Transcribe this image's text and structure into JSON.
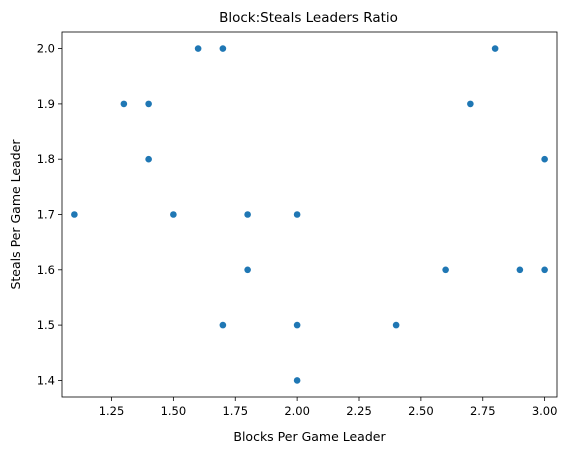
{
  "chart_data": {
    "type": "scatter",
    "title": "Block:Steals Leaders Ratio",
    "xlabel": "Blocks Per Game Leader",
    "ylabel": "Steals Per Game Leader",
    "xlim": [
      1.05,
      3.05
    ],
    "ylim": [
      1.37,
      2.03
    ],
    "x_ticks": [
      1.25,
      1.5,
      1.75,
      2.0,
      2.25,
      2.5,
      2.75,
      3.0
    ],
    "x_tick_labels": [
      "1.25",
      "1.50",
      "1.75",
      "2.00",
      "2.25",
      "2.50",
      "2.75",
      "3.00"
    ],
    "y_ticks": [
      1.4,
      1.5,
      1.6,
      1.7,
      1.8,
      1.9,
      2.0
    ],
    "y_tick_labels": [
      "1.4",
      "1.5",
      "1.6",
      "1.7",
      "1.8",
      "1.9",
      "2.0"
    ],
    "grid": false,
    "color": "#1f77b4",
    "points": [
      {
        "x": 1.1,
        "y": 1.7
      },
      {
        "x": 1.3,
        "y": 1.9
      },
      {
        "x": 1.4,
        "y": 1.9
      },
      {
        "x": 1.4,
        "y": 1.8
      },
      {
        "x": 1.5,
        "y": 1.7
      },
      {
        "x": 1.6,
        "y": 2.0
      },
      {
        "x": 1.7,
        "y": 2.0
      },
      {
        "x": 1.7,
        "y": 1.5
      },
      {
        "x": 1.8,
        "y": 1.7
      },
      {
        "x": 1.8,
        "y": 1.6
      },
      {
        "x": 2.0,
        "y": 1.7
      },
      {
        "x": 2.0,
        "y": 1.5
      },
      {
        "x": 2.0,
        "y": 1.4
      },
      {
        "x": 2.4,
        "y": 1.5
      },
      {
        "x": 2.6,
        "y": 1.6
      },
      {
        "x": 2.7,
        "y": 1.9
      },
      {
        "x": 2.8,
        "y": 2.0
      },
      {
        "x": 2.9,
        "y": 1.6
      },
      {
        "x": 3.0,
        "y": 1.8
      },
      {
        "x": 3.0,
        "y": 1.6
      }
    ]
  }
}
